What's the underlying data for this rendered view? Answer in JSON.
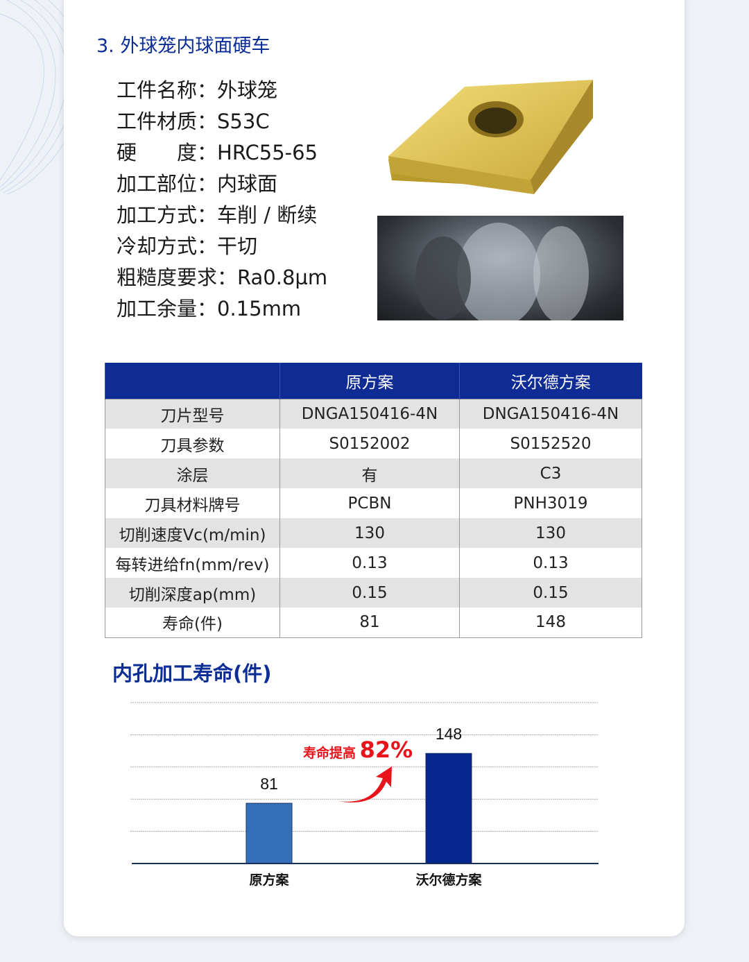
{
  "section_title": "3. 外球笼内球面硬车",
  "specs": [
    {
      "label": "工件名称：",
      "value": "外球笼"
    },
    {
      "label": "工件材质：",
      "value": "S53C"
    },
    {
      "label": "硬　　度：",
      "value": "HRC55-65"
    },
    {
      "label": "加工部位：",
      "value": "内球面"
    },
    {
      "label": "加工方式：",
      "value": "车削 / 断续"
    },
    {
      "label": "冷却方式：",
      "value": "干切"
    },
    {
      "label": "粗糙度要求：",
      "value": "Ra0.8µm"
    },
    {
      "label": "加工余量：",
      "value": "0.15mm"
    }
  ],
  "table": {
    "headers": [
      "",
      "原方案",
      "沃尔德方案"
    ],
    "rows": [
      [
        "刀片型号",
        "DNGA150416-4N",
        "DNGA150416-4N"
      ],
      [
        "刀具参数",
        "S0152002",
        "S0152520"
      ],
      [
        "涂层",
        "有",
        "C3"
      ],
      [
        "刀具材料牌号",
        "PCBN",
        "PNH3019"
      ],
      [
        "切削速度Vc(m/min)",
        "130",
        "130"
      ],
      [
        "每转进给fn(mm/rev)",
        "0.13",
        "0.13"
      ],
      [
        "切削深度ap(mm)",
        "0.15",
        "0.15"
      ],
      [
        "寿命(件)",
        "81",
        "148"
      ]
    ]
  },
  "chart_data": {
    "type": "bar",
    "title": "内孔加工寿命(件)",
    "categories": [
      "原方案",
      "沃尔德方案"
    ],
    "values": [
      81,
      148
    ],
    "colors": [
      "#3470ba",
      "#05258f"
    ],
    "ylim": [
      0,
      186
    ],
    "grid": true,
    "annotation": {
      "text": "寿命提高",
      "value": "82%",
      "color": "#e8141b"
    }
  }
}
